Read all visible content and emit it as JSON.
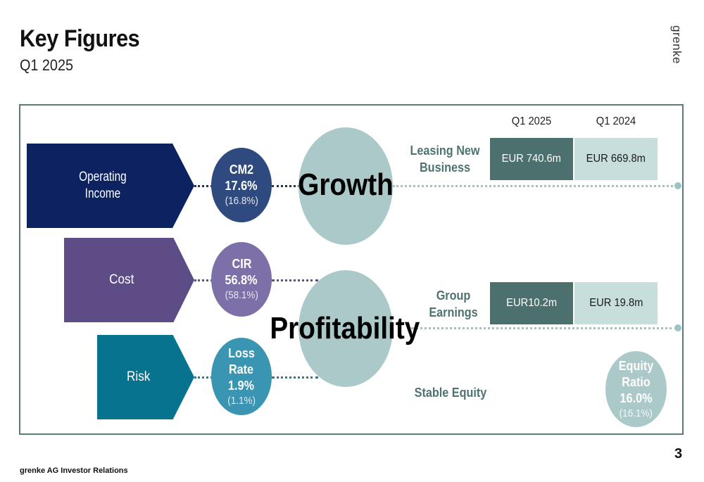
{
  "header": {
    "title": "Key Figures",
    "subtitle": "Q1 2025",
    "brand": "grenke"
  },
  "drivers": [
    {
      "label_line1": "Operating",
      "label_line2": "Income",
      "color": "#0d2260"
    },
    {
      "label_line1": "Cost",
      "label_line2": "",
      "color": "#5e4c86"
    },
    {
      "label_line1": "Risk",
      "label_line2": "",
      "color": "#08738f"
    }
  ],
  "kpis": [
    {
      "name": "CM2",
      "name2": "",
      "value": "17.6%",
      "prior": "(16.8%)",
      "color": "#2e4a7f"
    },
    {
      "name": "CIR",
      "name2": "",
      "value": "56.8%",
      "prior": "(58.1%)",
      "color": "#7d6fa8"
    },
    {
      "name": "Loss",
      "name2": "Rate",
      "value": "1.9%",
      "prior": "(1.1%)",
      "color": "#3a95b3"
    }
  ],
  "themes": {
    "growth": "Growth",
    "profitability": "Profitability"
  },
  "table": {
    "col_current": "Q1 2025",
    "col_prior": "Q1 2024",
    "rows": [
      {
        "label_line1": "Leasing New",
        "label_line2": "Business",
        "current": "EUR 740.6m",
        "prior": "EUR 669.8m"
      },
      {
        "label_line1": "Group",
        "label_line2": "Earnings",
        "current": "EUR10.2m",
        "prior": "EUR 19.8m"
      }
    ]
  },
  "equity": {
    "label": "Stable Equity",
    "circle_line1": "Equity",
    "circle_line2": "Ratio",
    "value": "16.0%",
    "prior": "(16.1%)"
  },
  "footer": {
    "source": "grenke AG Investor Relations",
    "page": "3"
  },
  "colors": {
    "frame": "#5a7b78",
    "accent": "#4e7470",
    "big_circle": "#acc9c9"
  }
}
